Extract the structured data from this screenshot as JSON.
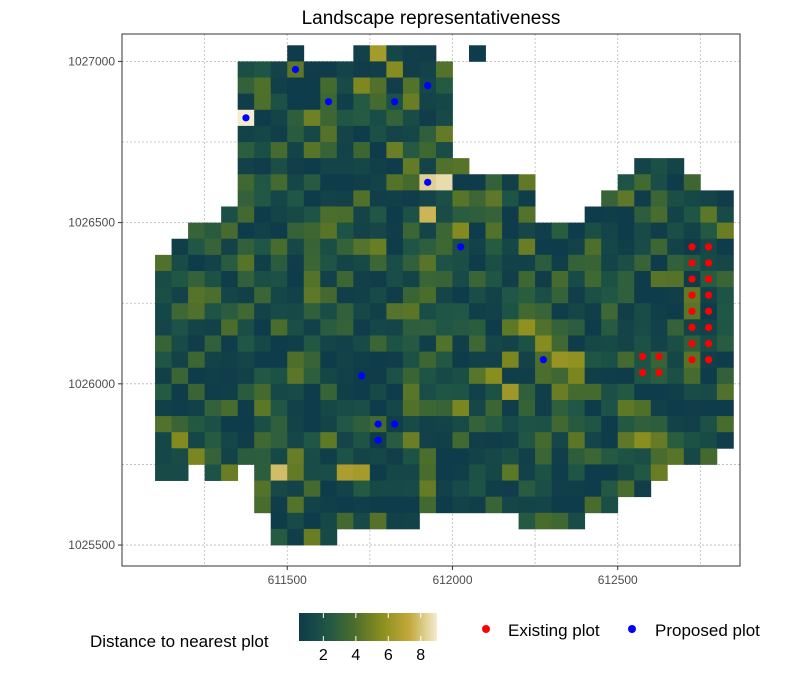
{
  "chart_data": {
    "type": "heatmap",
    "title": "Landscape representativeness",
    "xlabel": "",
    "ylabel": "",
    "x_ticks": [
      611500,
      612000,
      612500
    ],
    "y_ticks": [
      1025500,
      1026000,
      1026500,
      1027000
    ],
    "xlim": [
      611000,
      612870
    ],
    "ylim": [
      1025435,
      1027085
    ],
    "cell_size": 50,
    "grid": true,
    "color_scale": {
      "title": "Distance to nearest plot",
      "min": 0.5,
      "max": 9,
      "ticks": [
        2,
        4,
        6,
        8
      ],
      "colors": [
        "#0e3a4a",
        "#1f5645",
        "#4a6d2c",
        "#8a8e1e",
        "#c2a93a",
        "#f5eccf"
      ]
    },
    "legend_position": "bottom",
    "point_series": [
      {
        "name": "Existing plot",
        "color": "#ff0000",
        "points": [
          [
            612725,
            1026425
          ],
          [
            612775,
            1026425
          ],
          [
            612725,
            1026375
          ],
          [
            612775,
            1026375
          ],
          [
            612725,
            1026325
          ],
          [
            612775,
            1026325
          ],
          [
            612725,
            1026275
          ],
          [
            612775,
            1026275
          ],
          [
            612725,
            1026225
          ],
          [
            612775,
            1026225
          ],
          [
            612725,
            1026175
          ],
          [
            612775,
            1026175
          ],
          [
            612725,
            1026125
          ],
          [
            612775,
            1026125
          ],
          [
            612725,
            1026075
          ],
          [
            612775,
            1026075
          ],
          [
            612575,
            1026085
          ],
          [
            612625,
            1026085
          ],
          [
            612575,
            1026035
          ],
          [
            612625,
            1026035
          ]
        ]
      },
      {
        "name": "Proposed plot",
        "color": "#0000ff",
        "points": [
          [
            611525,
            1026975
          ],
          [
            611925,
            1026925
          ],
          [
            611625,
            1026875
          ],
          [
            611825,
            1026875
          ],
          [
            611375,
            1026825
          ],
          [
            611925,
            1026625
          ],
          [
            612025,
            1026425
          ],
          [
            612275,
            1026075
          ],
          [
            611725,
            1026025
          ],
          [
            611775,
            1025875
          ],
          [
            611825,
            1025875
          ],
          [
            611775,
            1025825
          ]
        ]
      }
    ],
    "cell_rows": [
      {
        "y": 1027025,
        "spans": [
          [
            611525,
            611525
          ],
          [
            611725,
            611775
          ],
          [
            611825,
            611825
          ],
          [
            611875,
            611875
          ],
          [
            611925,
            611925
          ],
          [
            612075,
            612075
          ]
        ]
      },
      {
        "y": 1026975,
        "spans": [
          [
            611375,
            611975
          ]
        ]
      },
      {
        "y": 1026925,
        "spans": [
          [
            611375,
            611975
          ]
        ]
      },
      {
        "y": 1026875,
        "spans": [
          [
            611375,
            611975
          ]
        ]
      },
      {
        "y": 1026825,
        "spans": [
          [
            611375,
            611975
          ]
        ]
      },
      {
        "y": 1026775,
        "spans": [
          [
            611375,
            611975
          ]
        ]
      },
      {
        "y": 1026725,
        "spans": [
          [
            611375,
            611975
          ]
        ]
      },
      {
        "y": 1026675,
        "spans": [
          [
            611375,
            612025
          ],
          [
            612575,
            612675
          ]
        ]
      },
      {
        "y": 1026625,
        "spans": [
          [
            611375,
            612225
          ],
          [
            612525,
            612725
          ]
        ]
      },
      {
        "y": 1026575,
        "spans": [
          [
            611375,
            612225
          ],
          [
            612475,
            612825
          ]
        ]
      },
      {
        "y": 1026525,
        "spans": [
          [
            611325,
            612225
          ],
          [
            612425,
            612825
          ]
        ]
      },
      {
        "y": 1026475,
        "spans": [
          [
            611225,
            612825
          ]
        ]
      },
      {
        "y": 1026425,
        "spans": [
          [
            611175,
            612825
          ]
        ]
      },
      {
        "y": 1026375,
        "spans": [
          [
            611125,
            612825
          ]
        ]
      },
      {
        "y": 1026325,
        "spans": [
          [
            611125,
            612825
          ]
        ]
      },
      {
        "y": 1026275,
        "spans": [
          [
            611125,
            612825
          ]
        ]
      },
      {
        "y": 1026225,
        "spans": [
          [
            611125,
            612825
          ]
        ]
      },
      {
        "y": 1026175,
        "spans": [
          [
            611125,
            612825
          ]
        ]
      },
      {
        "y": 1026125,
        "spans": [
          [
            611125,
            612825
          ]
        ]
      },
      {
        "y": 1026075,
        "spans": [
          [
            611125,
            612825
          ]
        ]
      },
      {
        "y": 1026025,
        "spans": [
          [
            611125,
            612825
          ]
        ]
      },
      {
        "y": 1025975,
        "spans": [
          [
            611125,
            612825
          ]
        ]
      },
      {
        "y": 1025925,
        "spans": [
          [
            611125,
            612825
          ]
        ]
      },
      {
        "y": 1025875,
        "spans": [
          [
            611125,
            612825
          ]
        ]
      },
      {
        "y": 1025825,
        "spans": [
          [
            611125,
            612825
          ]
        ]
      },
      {
        "y": 1025775,
        "spans": [
          [
            611125,
            611275
          ],
          [
            611325,
            611475
          ],
          [
            611525,
            612675
          ],
          [
            612725,
            612775
          ]
        ]
      },
      {
        "y": 1025725,
        "spans": [
          [
            611125,
            611175
          ],
          [
            611275,
            611325
          ],
          [
            611425,
            612625
          ]
        ]
      },
      {
        "y": 1025675,
        "spans": [
          [
            611425,
            612575
          ]
        ]
      },
      {
        "y": 1025625,
        "spans": [
          [
            611425,
            611925
          ],
          [
            611975,
            612475
          ]
        ]
      },
      {
        "y": 1025575,
        "spans": [
          [
            611475,
            611875
          ],
          [
            612225,
            612375
          ]
        ]
      },
      {
        "y": 1025525,
        "spans": [
          [
            611475,
            611575
          ],
          [
            611625,
            611625
          ]
        ]
      }
    ],
    "highlight_cells": [
      [
        611375,
        1026825,
        9.0
      ],
      [
        611925,
        1026625,
        8.3
      ],
      [
        611975,
        1026625,
        8.6
      ],
      [
        611925,
        1026525,
        7.6
      ],
      [
        611775,
        1027025,
        6.4
      ],
      [
        611475,
        1025725,
        7.8
      ],
      [
        611675,
        1025725,
        6.6
      ],
      [
        611725,
        1025725,
        6.4
      ],
      [
        612325,
        1026075,
        6.0
      ],
      [
        612375,
        1026075,
        5.8
      ],
      [
        612175,
        1025975,
        6.2
      ],
      [
        612125,
        1026025,
        5.6
      ],
      [
        612225,
        1026175,
        5.8
      ],
      [
        612275,
        1026125,
        5.5
      ],
      [
        611175,
        1025825,
        5.4
      ],
      [
        612025,
        1025925,
        5.2
      ],
      [
        612475,
        1025575,
        5.0
      ],
      [
        612575,
        1025825,
        5.6
      ],
      [
        612025,
        1026475,
        5.4
      ],
      [
        611725,
        1026925,
        5.3
      ],
      [
        611825,
        1026975,
        5.5
      ],
      [
        611575,
        1026825,
        4.9
      ],
      [
        612375,
        1026025,
        5.2
      ],
      [
        612175,
        1026075,
        5.2
      ],
      [
        611225,
        1025775,
        5.2
      ]
    ]
  }
}
